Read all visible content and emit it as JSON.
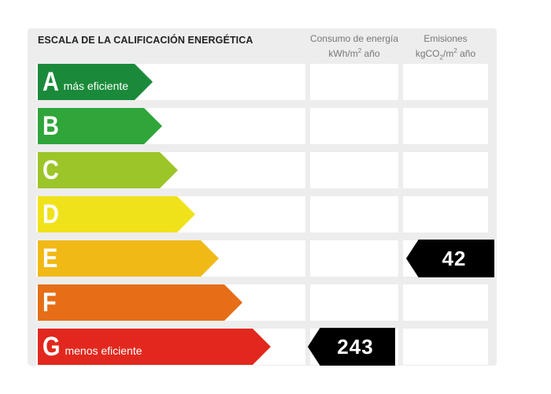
{
  "header": {
    "title": "ESCALA DE LA CALIFICACIÓN ENERGÉTICA",
    "consumo_line1": "Consumo de energía",
    "consumo_line2": "kWh/m",
    "consumo_sup": "2",
    "consumo_tail": " año",
    "emisiones_line1": "Emisiones",
    "emisiones_a": "kgCO",
    "emisiones_sub": "2",
    "emisiones_b": "/m",
    "emisiones_sup": "2",
    "emisiones_tail": " año"
  },
  "ratings": [
    {
      "letter": "A",
      "desc": "más eficiente",
      "color": "#1a8a3a"
    },
    {
      "letter": "B",
      "desc": "",
      "color": "#2fa53a"
    },
    {
      "letter": "C",
      "desc": "",
      "color": "#9cc529"
    },
    {
      "letter": "D",
      "desc": "",
      "color": "#f0e21a"
    },
    {
      "letter": "E",
      "desc": "",
      "color": "#f1b916"
    },
    {
      "letter": "F",
      "desc": "",
      "color": "#e56e16"
    },
    {
      "letter": "G",
      "desc": "menos eficiente",
      "color": "#e2281e"
    }
  ],
  "markers": {
    "consumo": {
      "value": "243",
      "rating": "G"
    },
    "emisiones": {
      "value": "42",
      "rating": "E"
    }
  }
}
